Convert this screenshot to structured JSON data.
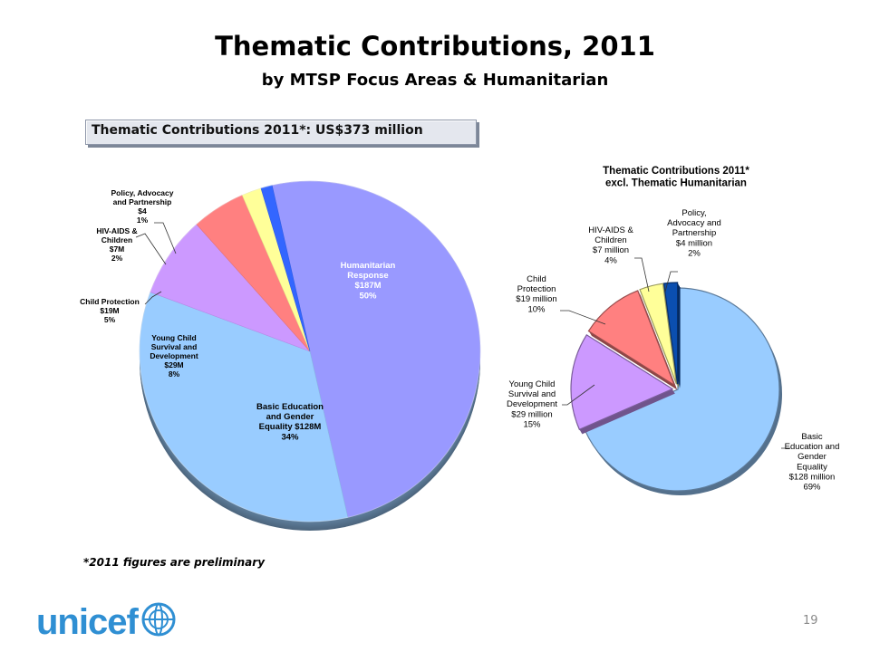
{
  "header": {
    "title": "Thematic Contributions, 2011",
    "subtitle": "by MTSP Focus Areas & Humanitarian"
  },
  "total_box": "Thematic Contributions 2011*: US$373 million",
  "footnote": "*2011 figures are preliminary",
  "page_number": "19",
  "logo": {
    "text": "unicef",
    "icon": "unicef-globe-icon",
    "color": "#2f8fd3"
  },
  "chart_data": [
    {
      "type": "pie",
      "title": "Thematic Contributions 2011*: US$373 million",
      "slices": [
        {
          "name": "Humanitarian Response",
          "value": 187,
          "value_label": "$187M",
          "pct_label": "50%",
          "color": "#9999ff"
        },
        {
          "name": "Basic Education and Gender Equality",
          "value": 128,
          "value_label": "$128M",
          "pct_label": "34%",
          "color": "#99ccff"
        },
        {
          "name": "Young Child Survival and Development",
          "value": 29,
          "value_label": "$29M",
          "pct_label": "8%",
          "color": "#cc99ff"
        },
        {
          "name": "Child Protection",
          "value": 19,
          "value_label": "$19M",
          "pct_label": "5%",
          "color": "#ff8080"
        },
        {
          "name": "HIV-AIDS & Children",
          "value": 7,
          "value_label": "$7M",
          "pct_label": "2%",
          "color": "#ffff99"
        },
        {
          "name": "Policy, Advocacy and Partnership",
          "value": 4,
          "value_label": "$4",
          "pct_label": "1%",
          "color": "#3366ff"
        }
      ]
    },
    {
      "type": "pie",
      "title": "Thematic Contributions 2011* excl. Thematic Humanitarian",
      "slices": [
        {
          "name": "Basic Education and Gender Equality",
          "value": 128,
          "value_label": "$128 million",
          "pct_label": "69%",
          "color": "#99ccff"
        },
        {
          "name": "Young Child Survival and Development",
          "value": 29,
          "value_label": "$29 million",
          "pct_label": "15%",
          "color": "#cc99ff"
        },
        {
          "name": "Child Protection",
          "value": 19,
          "value_label": "$19 million",
          "pct_label": "10%",
          "color": "#ff8080"
        },
        {
          "name": "HIV-AIDS & Children",
          "value": 7,
          "value_label": "$7 million",
          "pct_label": "4%",
          "color": "#ffff99"
        },
        {
          "name": "Policy, Advocacy and Partnership",
          "value": 4,
          "value_label": "$4 million",
          "pct_label": "2%",
          "color": "#0b4fb0"
        }
      ]
    }
  ]
}
